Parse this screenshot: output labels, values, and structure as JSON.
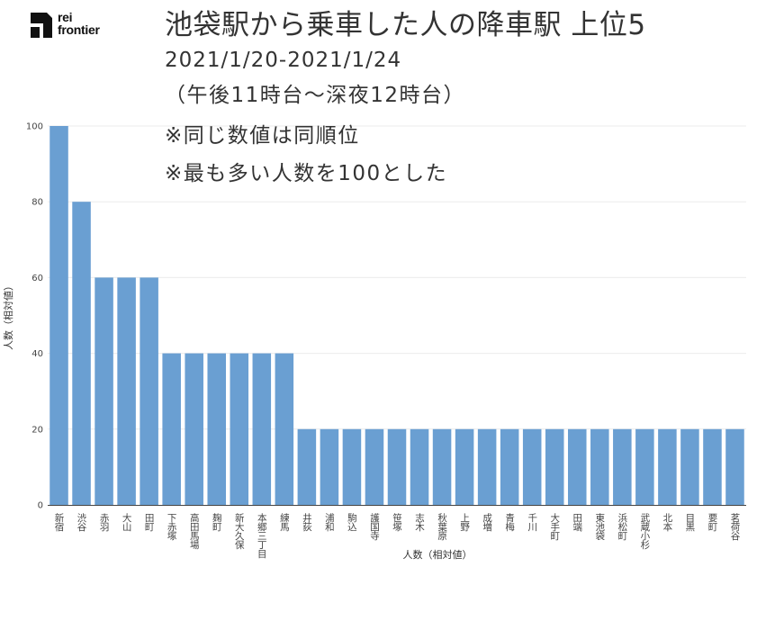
{
  "brand": {
    "logo_line1": "rei",
    "logo_line2": "frontier"
  },
  "title": "池袋駅から乗車した人の降車駅 上位5",
  "subtitle": "2021/1/20-2021/1/24",
  "notes": [
    "（午後11時台〜深夜12時台）",
    "※同じ数値は同順位",
    "※最も多い人数を100とした"
  ],
  "chart_data": {
    "type": "bar",
    "xlabel": "人数（相対値）",
    "ylabel": "人数（相対値）",
    "ylim": [
      0,
      100
    ],
    "yticks": [
      0,
      20,
      40,
      60,
      80,
      100
    ],
    "grid": true,
    "bar_color": "#6a9fd2",
    "categories": [
      "新宿",
      "渋谷",
      "赤羽",
      "大山",
      "田町",
      "下赤塚",
      "高田馬場",
      "麹町",
      "新大久保",
      "本郷三丁目",
      "練馬",
      "井荻",
      "浦和",
      "駒込",
      "護国寺",
      "笹塚",
      "志木",
      "秋葉原",
      "上野",
      "成増",
      "青梅",
      "千川",
      "大手町",
      "田端",
      "東池袋",
      "浜松町",
      "武蔵小杉",
      "北本",
      "目黒",
      "要町",
      "茗荷谷"
    ],
    "values": [
      100,
      80,
      60,
      60,
      60,
      40,
      40,
      40,
      40,
      40,
      40,
      20,
      20,
      20,
      20,
      20,
      20,
      20,
      20,
      20,
      20,
      20,
      20,
      20,
      20,
      20,
      20,
      20,
      20,
      20,
      20
    ]
  }
}
